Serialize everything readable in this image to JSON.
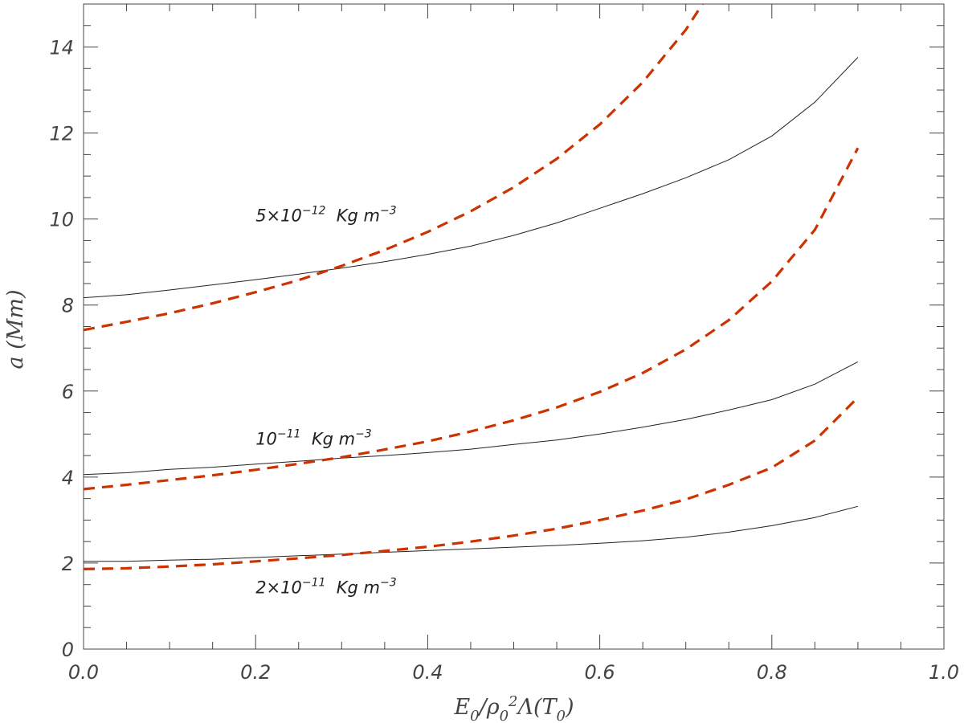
{
  "chart_data": {
    "type": "line",
    "title": "",
    "xlabel": "E0/ρ0²Λ(T0)",
    "ylabel": "a (Mm)",
    "xlim": [
      0.0,
      1.0
    ],
    "ylim": [
      0,
      15
    ],
    "x_ticks": [
      "0.0",
      "0.2",
      "0.4",
      "0.6",
      "0.8",
      "1.0"
    ],
    "y_ticks": [
      "0",
      "2",
      "4",
      "6",
      "8",
      "10",
      "12",
      "14"
    ],
    "grid": false,
    "legend": "none",
    "colors": {
      "solid": "#222222",
      "dashed": "#cc3300",
      "axis": "#444444"
    },
    "x": [
      0.0,
      0.05,
      0.1,
      0.15,
      0.2,
      0.25,
      0.3,
      0.35,
      0.4,
      0.45,
      0.5,
      0.55,
      0.6,
      0.65,
      0.7,
      0.75,
      0.8,
      0.85,
      0.9
    ],
    "series": [
      {
        "style": "solid",
        "values": [
          8.17,
          8.24,
          8.35,
          8.47,
          8.59,
          8.72,
          8.86,
          9.01,
          9.18,
          9.37,
          9.62,
          9.91,
          10.25,
          10.59,
          10.96,
          11.38,
          11.93,
          12.72,
          13.76
        ]
      },
      {
        "style": "dashed",
        "values": [
          7.42,
          7.61,
          7.81,
          8.04,
          8.3,
          8.58,
          8.91,
          9.28,
          9.7,
          10.18,
          10.74,
          11.4,
          12.2,
          13.18,
          14.4,
          15.95,
          null,
          null,
          null
        ]
      },
      {
        "style": "solid",
        "values": [
          4.06,
          4.1,
          4.18,
          4.23,
          4.3,
          4.37,
          4.44,
          4.5,
          4.57,
          4.65,
          4.76,
          4.86,
          5.0,
          5.16,
          5.34,
          5.56,
          5.8,
          6.16,
          6.68
        ]
      },
      {
        "style": "dashed",
        "values": [
          3.72,
          3.82,
          3.93,
          4.04,
          4.17,
          4.31,
          4.46,
          4.64,
          4.83,
          5.06,
          5.32,
          5.62,
          5.98,
          6.42,
          6.97,
          7.65,
          8.55,
          9.75,
          11.65
        ]
      },
      {
        "style": "solid",
        "values": [
          2.04,
          2.04,
          2.07,
          2.09,
          2.13,
          2.17,
          2.21,
          2.25,
          2.29,
          2.33,
          2.37,
          2.41,
          2.46,
          2.52,
          2.6,
          2.72,
          2.87,
          3.06,
          3.32
        ]
      },
      {
        "style": "dashed",
        "values": [
          1.86,
          1.88,
          1.92,
          1.97,
          2.04,
          2.11,
          2.19,
          2.28,
          2.38,
          2.5,
          2.64,
          2.8,
          3.0,
          3.22,
          3.48,
          3.82,
          4.22,
          4.85,
          5.85
        ]
      }
    ],
    "annotations": [
      {
        "mantissa": "5×10",
        "exponent": "−12",
        "unit": "Kg m",
        "unit_exponent": "−3",
        "x": 0.2,
        "y": 9.95
      },
      {
        "mantissa": "10",
        "exponent": "−11",
        "unit": "Kg m",
        "unit_exponent": "−3",
        "x": 0.2,
        "y": 4.75
      },
      {
        "mantissa": "2×10",
        "exponent": "−11",
        "unit": "Kg m",
        "unit_exponent": "−3",
        "x": 0.2,
        "y": 1.3
      }
    ]
  }
}
